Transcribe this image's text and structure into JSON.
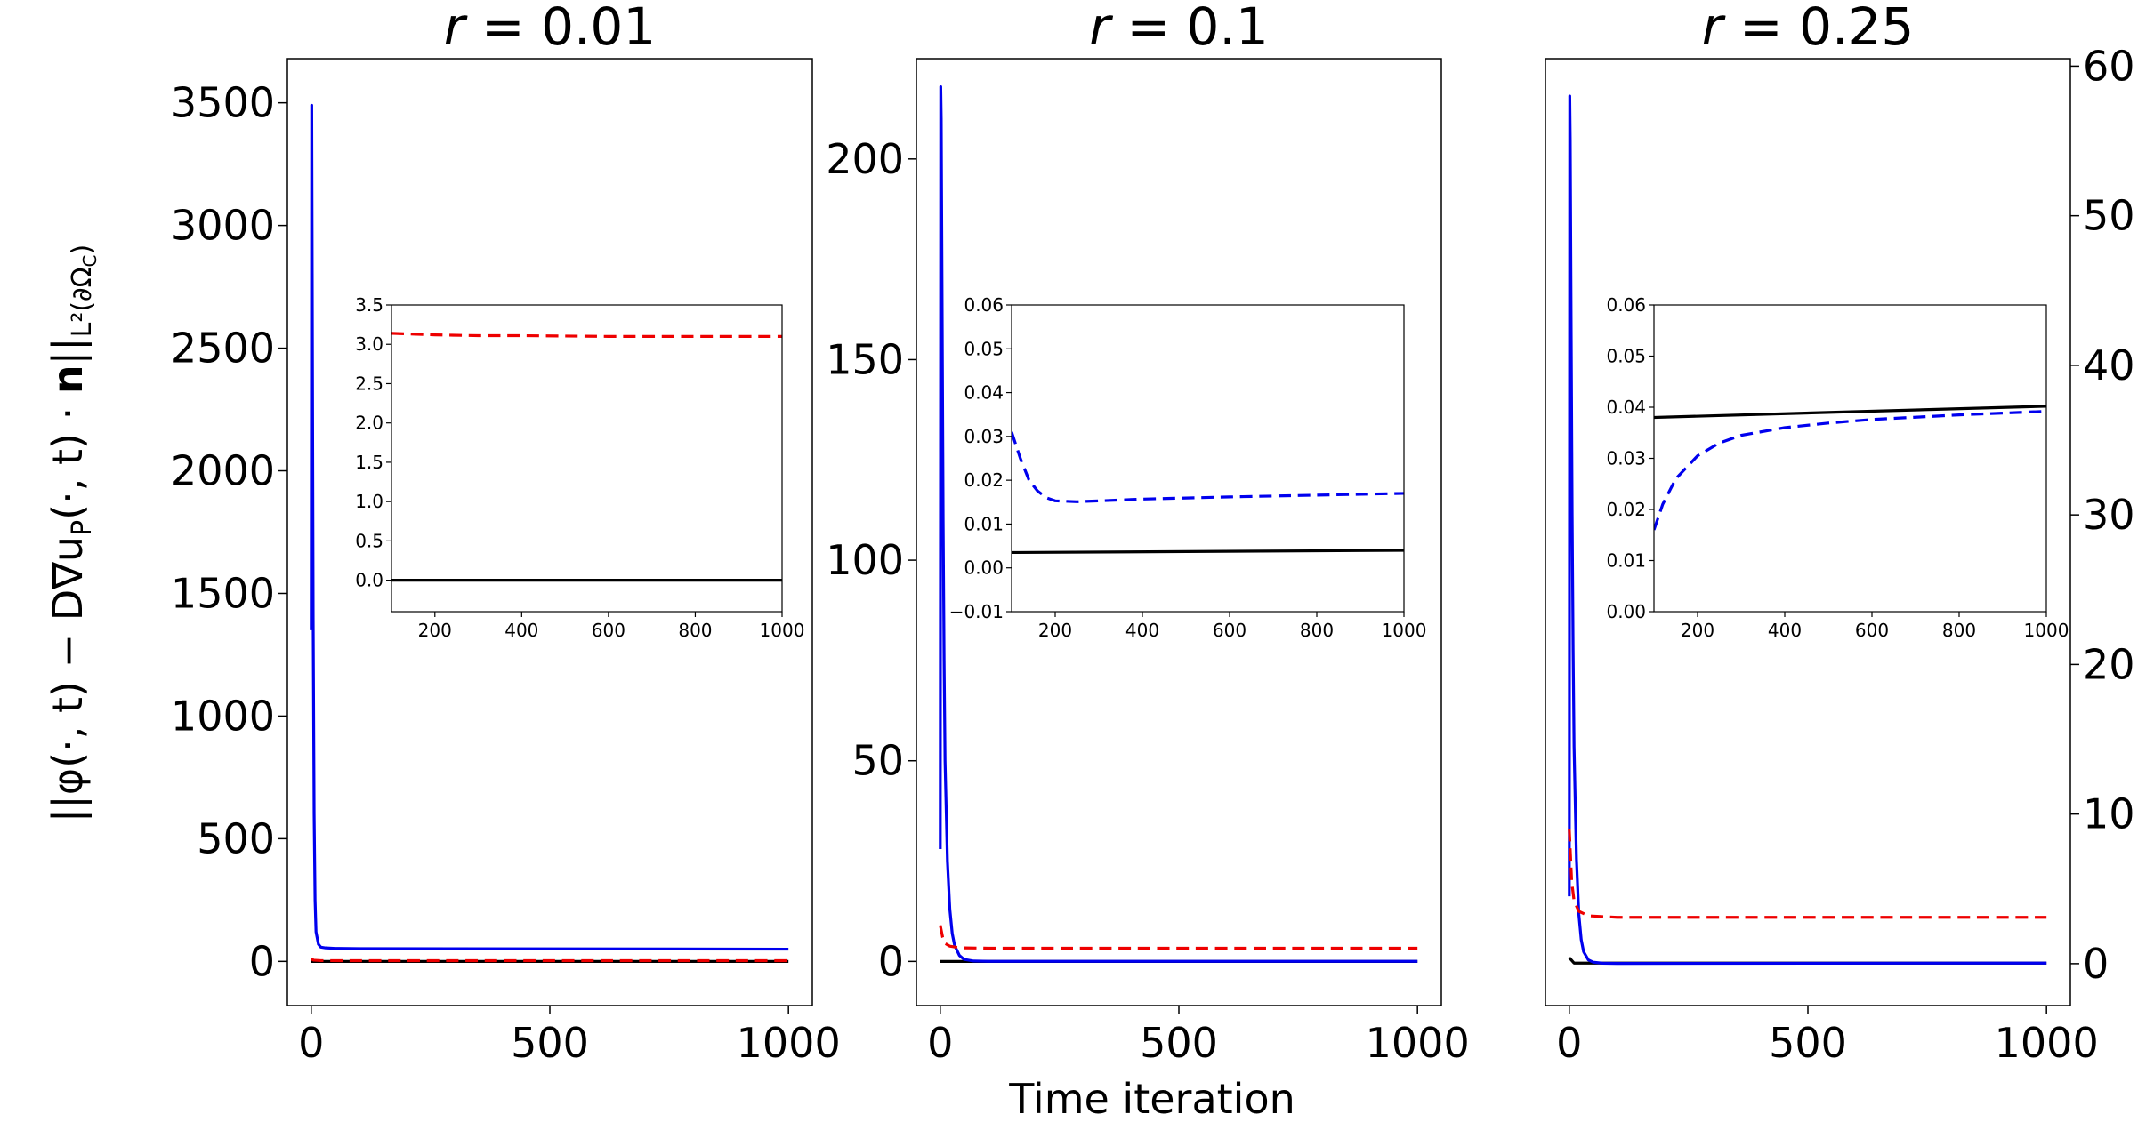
{
  "figure": {
    "xlabel": "Time iteration",
    "ylabel": "||φ(·, t) − D∇u_P(·, t) · n||_{L²(∂Ω_C)}",
    "ylabel_parts": {
      "pre": "||φ(·, t) − D∇u",
      "sub_p": "P",
      "mid": "(·, t) · ",
      "bold_n": "n",
      "post": "||",
      "sub_tail": "L²(∂Ω",
      "sub_c": "C",
      "close": ")"
    },
    "colors": {
      "solid_black": "#000000",
      "blue": "#0000ee",
      "red_dashed": "#ee0000"
    }
  },
  "chart_data": [
    {
      "type": "line",
      "title_var": "r",
      "title_value": "= 0.01",
      "xlim": [
        -50,
        1050
      ],
      "ylim": [
        -180,
        3680
      ],
      "xticks": [
        0,
        500,
        1000
      ],
      "xtick_labels": [
        "0",
        "500",
        "1000"
      ],
      "yticks": [
        0,
        500,
        1000,
        1500,
        2000,
        2500,
        3000,
        3500
      ],
      "ytick_labels": [
        "0",
        "500",
        "1000",
        "1500",
        "2000",
        "2500",
        "3000",
        "3500"
      ],
      "series": [
        {
          "name": "black",
          "color": "#000000",
          "dash": false,
          "axis": "left",
          "x": [
            0,
            1000
          ],
          "y": [
            0,
            0
          ]
        },
        {
          "name": "blue",
          "color": "#0000ee",
          "dash": false,
          "axis": "left",
          "x": [
            0,
            1,
            2,
            4,
            6,
            8,
            10,
            15,
            20,
            30,
            50,
            100,
            1000
          ],
          "y": [
            1350,
            3490,
            2800,
            1400,
            600,
            250,
            120,
            70,
            58,
            55,
            53,
            52,
            50
          ]
        },
        {
          "name": "red",
          "color": "#ee0000",
          "dash": true,
          "axis": "left",
          "x": [
            0,
            5,
            20,
            100,
            1000
          ],
          "y": [
            10,
            5,
            3.2,
            3.1,
            3.1
          ]
        }
      ],
      "inset": {
        "xlim": [
          100,
          1000
        ],
        "ylim": [
          -0.4,
          3.5
        ],
        "xticks": [
          200,
          400,
          600,
          800,
          1000
        ],
        "xtick_labels": [
          "200",
          "400",
          "600",
          "800",
          "1000"
        ],
        "yticks": [
          0,
          0.5,
          1.0,
          1.5,
          2.0,
          2.5,
          3.0,
          3.5
        ],
        "ytick_labels": [
          "0.0",
          "0.5",
          "1.0",
          "1.5",
          "2.0",
          "2.5",
          "3.0",
          "3.5"
        ],
        "series": [
          {
            "name": "black",
            "color": "#000000",
            "dash": false,
            "x": [
              100,
              1000
            ],
            "y": [
              0,
              0
            ]
          },
          {
            "name": "red",
            "color": "#ee0000",
            "dash": true,
            "x": [
              100,
              150,
              200,
              300,
              400,
              600,
              800,
              1000
            ],
            "y": [
              3.14,
              3.13,
              3.12,
              3.11,
              3.11,
              3.1,
              3.1,
              3.1
            ]
          }
        ]
      }
    },
    {
      "type": "line",
      "title_var": "r",
      "title_value": "= 0.1",
      "xlim": [
        -50,
        1050
      ],
      "ylim": [
        -11,
        225
      ],
      "xticks": [
        0,
        500,
        1000
      ],
      "xtick_labels": [
        "0",
        "500",
        "1000"
      ],
      "yticks": [
        0,
        50,
        100,
        150,
        200
      ],
      "ytick_labels": [
        "0",
        "50",
        "100",
        "150",
        "200"
      ],
      "series": [
        {
          "name": "black",
          "color": "#000000",
          "dash": false,
          "axis": "left",
          "x": [
            0,
            1000
          ],
          "y": [
            0,
            0
          ]
        },
        {
          "name": "blue",
          "color": "#0000ee",
          "dash": false,
          "axis": "left",
          "x": [
            0,
            1,
            2,
            4,
            6,
            8,
            10,
            15,
            20,
            25,
            30,
            40,
            50,
            70,
            100,
            1000
          ],
          "y": [
            28,
            218,
            210,
            160,
            110,
            75,
            50,
            25,
            13,
            7,
            4,
            1.5,
            0.5,
            0.1,
            0.03,
            0.02
          ]
        },
        {
          "name": "red",
          "color": "#ee0000",
          "dash": true,
          "axis": "left",
          "x": [
            0,
            5,
            10,
            20,
            40,
            100,
            1000
          ],
          "y": [
            9,
            6,
            4.5,
            3.8,
            3.4,
            3.3,
            3.3
          ]
        }
      ],
      "inset": {
        "xlim": [
          100,
          1000
        ],
        "ylim": [
          -0.01,
          0.06
        ],
        "xticks": [
          200,
          400,
          600,
          800,
          1000
        ],
        "xtick_labels": [
          "200",
          "400",
          "600",
          "800",
          "1000"
        ],
        "yticks": [
          -0.01,
          0.0,
          0.01,
          0.02,
          0.03,
          0.04,
          0.05,
          0.06
        ],
        "ytick_labels": [
          "−0.01",
          "0.00",
          "0.01",
          "0.02",
          "0.03",
          "0.04",
          "0.05",
          "0.06"
        ],
        "series": [
          {
            "name": "black",
            "color": "#000000",
            "dash": false,
            "x": [
              100,
              1000
            ],
            "y": [
              0.0035,
              0.004
            ]
          },
          {
            "name": "blue",
            "color": "#0000ee",
            "dash": true,
            "x": [
              100,
              120,
              140,
              160,
              180,
              200,
              250,
              300,
              400,
              600,
              800,
              1000
            ],
            "y": [
              0.031,
              0.025,
              0.02,
              0.0175,
              0.016,
              0.0153,
              0.0151,
              0.0153,
              0.0157,
              0.0162,
              0.0166,
              0.017
            ]
          }
        ]
      }
    },
    {
      "type": "line",
      "title_var": "r",
      "title_value": "= 0.25",
      "xlim": [
        -50,
        1050
      ],
      "ylim": [
        -3,
        61
      ],
      "ylim_right": [
        -2.8,
        60.5
      ],
      "xticks": [
        0,
        500,
        1000
      ],
      "xtick_labels": [
        "0",
        "500",
        "1000"
      ],
      "yticks": [],
      "ytick_labels": [],
      "yticks_right": [
        0,
        10,
        20,
        30,
        40,
        50,
        60
      ],
      "ytick_labels_right": [
        "0",
        "10",
        "20",
        "30",
        "40",
        "50",
        "60"
      ],
      "series": [
        {
          "name": "black",
          "color": "#000000",
          "dash": false,
          "axis": "right",
          "x": [
            0,
            10,
            1000
          ],
          "y": [
            0.4,
            0.04,
            0.04
          ]
        },
        {
          "name": "blue",
          "color": "#0000ee",
          "dash": false,
          "axis": "right",
          "x": [
            0,
            1,
            2,
            4,
            6,
            8,
            10,
            15,
            20,
            25,
            30,
            40,
            50,
            70,
            100,
            1000
          ],
          "y": [
            4.5,
            58,
            55,
            42,
            30,
            21,
            14.5,
            7,
            3.3,
            1.6,
            0.8,
            0.25,
            0.1,
            0.03,
            0.016,
            0.04
          ]
        },
        {
          "name": "red",
          "color": "#ee0000",
          "dash": true,
          "axis": "right",
          "x": [
            0,
            5,
            10,
            20,
            40,
            100,
            1000
          ],
          "y": [
            9,
            5.5,
            4.2,
            3.5,
            3.2,
            3.1,
            3.1
          ]
        }
      ],
      "inset": {
        "xlim": [
          100,
          1000
        ],
        "ylim": [
          0.0,
          0.06
        ],
        "xticks": [
          200,
          400,
          600,
          800,
          1000
        ],
        "xtick_labels": [
          "200",
          "400",
          "600",
          "800",
          "1000"
        ],
        "yticks": [
          0.0,
          0.01,
          0.02,
          0.03,
          0.04,
          0.05,
          0.06
        ],
        "ytick_labels": [
          "0.00",
          "0.01",
          "0.02",
          "0.03",
          "0.04",
          "0.05",
          "0.06"
        ],
        "series": [
          {
            "name": "black",
            "color": "#000000",
            "dash": false,
            "x": [
              100,
              1000
            ],
            "y": [
              0.038,
              0.0402
            ]
          },
          {
            "name": "blue",
            "color": "#0000ee",
            "dash": true,
            "x": [
              100,
              120,
              150,
              200,
              250,
              300,
              400,
              500,
              600,
              800,
              1000
            ],
            "y": [
              0.016,
              0.021,
              0.026,
              0.0305,
              0.033,
              0.0345,
              0.036,
              0.0369,
              0.0376,
              0.0385,
              0.0392
            ]
          }
        ]
      }
    }
  ]
}
